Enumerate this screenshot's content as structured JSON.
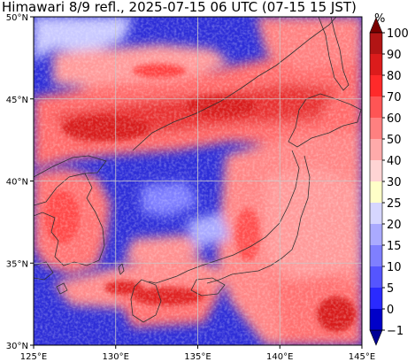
{
  "title": "Himawari 8/9 refl., 2025-07-15 06 UTC (07-15 15 JST)",
  "colorbar": {
    "unit": "%",
    "levels": [
      {
        "label": "100",
        "color": "#8b0000"
      },
      {
        "label": "90",
        "color": "#b21515"
      },
      {
        "label": "80",
        "color": "#dc1c1c"
      },
      {
        "label": "70",
        "color": "#ff2a2a"
      },
      {
        "label": "60",
        "color": "#ff5555"
      },
      {
        "label": "50",
        "color": "#ff8080"
      },
      {
        "label": "40",
        "color": "#ffaaaa"
      },
      {
        "label": "30",
        "color": "#ffd4d4"
      },
      {
        "label": "25",
        "color": "#ffffc8"
      },
      {
        "label": "20",
        "color": "#d6d6ff"
      },
      {
        "label": "15",
        "color": "#aaaaff"
      },
      {
        "label": "10",
        "color": "#7f7fff"
      },
      {
        "label": "5",
        "color": "#5555ff"
      },
      {
        "label": "0",
        "color": "#2a2aff"
      },
      {
        "label": "−1",
        "color": "#0000c8"
      }
    ],
    "extend_top_color": "#7a0000",
    "extend_bottom_color": "#000096"
  },
  "axes": {
    "x_ticks": [
      "125°E",
      "130°E",
      "135°E",
      "140°E",
      "145°E"
    ],
    "y_ticks": [
      "50°N",
      "45°N",
      "40°N",
      "35°N",
      "30°N"
    ],
    "lon_range": [
      125,
      145
    ],
    "lat_range": [
      30,
      50
    ],
    "grid": true
  },
  "colors": {
    "ocean_clear": "#2e2ed8",
    "cloud_low": "#ffaaaa",
    "cloud_mid": "#ff6060",
    "cloud_high": "#d81a1a",
    "coastline": "#333333",
    "gridline": "#c8c8c8"
  }
}
